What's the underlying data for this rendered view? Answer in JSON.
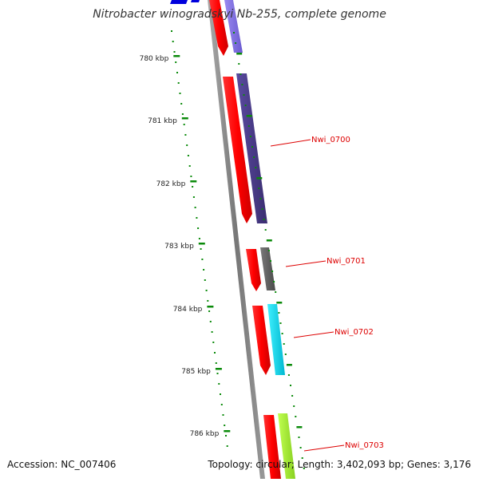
{
  "title": "Nitrobacter winogradskyi Nb-255, complete genome",
  "accession": "Accession: NC_007406",
  "topology": "Topology: circular; Length: 3,402,093 bp; Genes: 3,176",
  "ruler": {
    "labels": [
      "780 kbp",
      "781 kbp",
      "782 kbp",
      "783 kbp",
      "784 kbp",
      "785 kbp",
      "786 kbp"
    ]
  },
  "genes": [
    {
      "name": "Nwi_0700",
      "cds_color": "#4a3d8c"
    },
    {
      "name": "Nwi_0701",
      "cds_color": "#666666"
    },
    {
      "name": "Nwi_0702",
      "cds_color": "#00e0f0"
    },
    {
      "name": "Nwi_0703",
      "cds_color": "#a8f030"
    }
  ],
  "colors": {
    "gene_red": "#ff0000",
    "label_red": "#dd0000",
    "tick_green": "#0a8a0a",
    "backbone": "#888888",
    "top_blue": "#0000dd",
    "top_purple": "#7b68ee"
  }
}
